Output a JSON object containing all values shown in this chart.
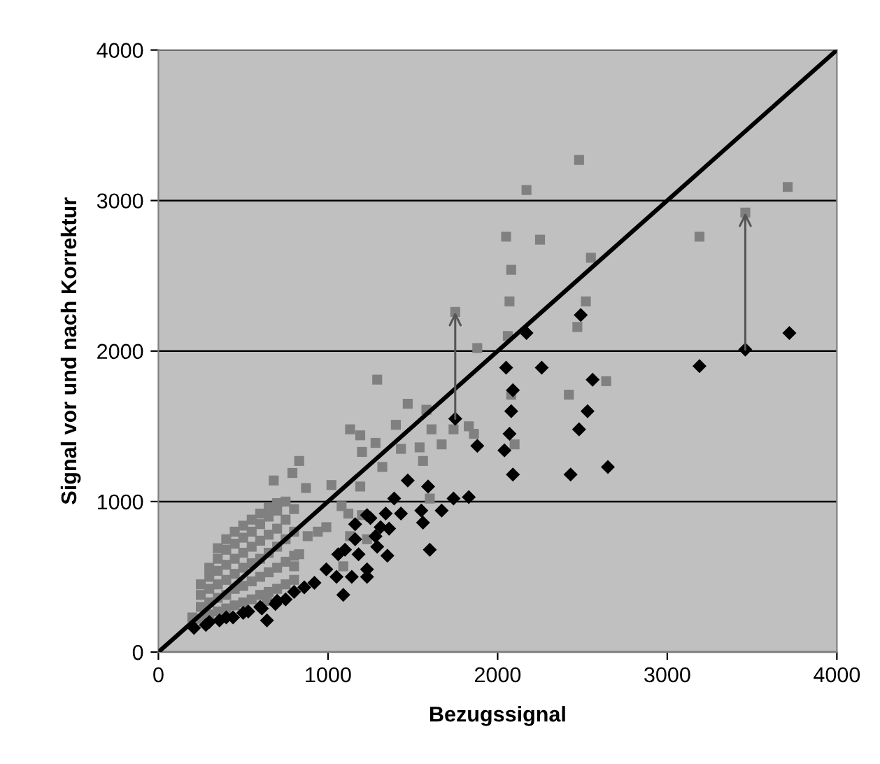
{
  "chart_data": {
    "type": "scatter",
    "xlabel": "Bezugssignal",
    "ylabel": "Signal vor und nach Korrektur",
    "xlim": [
      0,
      4000
    ],
    "ylim": [
      0,
      4000
    ],
    "xticks": [
      0,
      1000,
      2000,
      3000,
      4000
    ],
    "yticks": [
      0,
      1000,
      2000,
      3000,
      4000
    ],
    "grid": "y",
    "legend": false,
    "series": [
      {
        "marker": "square",
        "color": "#808080",
        "x": [
          2480,
          2170,
          3710,
          3460,
          3190,
          2050,
          2250,
          2080,
          2550,
          2070,
          2520,
          2470,
          1750,
          2060,
          1880,
          2640,
          2420,
          2080,
          1470,
          1610,
          1740,
          1830,
          1860,
          1670,
          2100,
          1540,
          1430,
          1400,
          1560,
          1580,
          1290,
          1130,
          1190,
          1280,
          1200,
          1320,
          830,
          680,
          790,
          870,
          1020,
          1190,
          1080,
          1200,
          1120,
          1600,
          990,
          940,
          880,
          1130,
          1230,
          1090,
          830,
          800,
          640,
          200,
          250,
          250,
          250,
          250,
          300,
          300,
          300,
          300,
          300,
          350,
          350,
          350,
          350,
          350,
          350,
          400,
          400,
          400,
          400,
          400,
          400,
          450,
          450,
          450,
          450,
          450,
          450,
          500,
          500,
          500,
          500,
          500,
          500,
          550,
          550,
          550,
          550,
          550,
          550,
          600,
          600,
          600,
          600,
          600,
          600,
          650,
          650,
          650,
          650,
          650,
          650,
          700,
          700,
          700,
          700,
          700,
          700,
          750,
          750,
          750,
          750,
          750,
          800,
          800,
          800,
          800
        ],
        "values": [
          3270,
          3070,
          3090,
          2920,
          2760,
          2760,
          2740,
          2540,
          2620,
          2330,
          2330,
          2160,
          2260,
          2100,
          2020,
          1800,
          1710,
          1710,
          1650,
          1480,
          1480,
          1500,
          1450,
          1380,
          1380,
          1360,
          1350,
          1510,
          1270,
          1610,
          1810,
          1480,
          1440,
          1390,
          1330,
          1230,
          1270,
          1140,
          1190,
          1090,
          1110,
          1100,
          970,
          910,
          920,
          1020,
          830,
          800,
          770,
          770,
          750,
          570,
          650,
          570,
          340,
          230,
          220,
          300,
          380,
          450,
          250,
          330,
          420,
          500,
          560,
          270,
          360,
          450,
          540,
          620,
          690,
          290,
          380,
          480,
          580,
          680,
          750,
          310,
          420,
          520,
          620,
          720,
          800,
          330,
          440,
          560,
          660,
          760,
          840,
          350,
          470,
          590,
          700,
          800,
          880,
          380,
          500,
          620,
          740,
          850,
          920,
          400,
          530,
          660,
          780,
          900,
          960,
          420,
          560,
          700,
          820,
          940,
          990,
          450,
          600,
          750,
          880,
          1000,
          480,
          640,
          800,
          950
        ]
      },
      {
        "marker": "diamond",
        "color": "#000000",
        "x": [
          3720,
          3460,
          3190,
          2490,
          2170,
          2050,
          2260,
          2560,
          2530,
          2080,
          2090,
          2480,
          2650,
          2430,
          2090,
          2070,
          2040,
          1880,
          1750,
          1470,
          1590,
          1740,
          1830,
          1390,
          1430,
          1550,
          1670,
          1560,
          1600,
          1340,
          1250,
          1160,
          1310,
          1360,
          1290,
          1350,
          1180,
          1230,
          1230,
          1140,
          1050,
          1090,
          1100,
          1060,
          990,
          920,
          860,
          800,
          750,
          690,
          640,
          610,
          530,
          440,
          360,
          280,
          210,
          1160,
          1280,
          1230,
          300,
          400,
          500,
          600,
          700
        ],
        "values": [
          2120,
          2010,
          1900,
          2240,
          2120,
          1890,
          1890,
          1810,
          1600,
          1600,
          1740,
          1480,
          1230,
          1180,
          1180,
          1450,
          1340,
          1370,
          1550,
          1140,
          1100,
          1020,
          1030,
          1020,
          920,
          940,
          940,
          860,
          680,
          920,
          890,
          850,
          830,
          820,
          700,
          640,
          650,
          550,
          500,
          500,
          500,
          380,
          680,
          650,
          550,
          460,
          430,
          400,
          350,
          320,
          210,
          290,
          270,
          230,
          210,
          180,
          160,
          750,
          770,
          910,
          200,
          230,
          260,
          300,
          340
        ]
      },
      {
        "type": "line",
        "color": "#000000",
        "x": [
          0,
          4000
        ],
        "values": [
          0,
          4000
        ]
      }
    ]
  }
}
